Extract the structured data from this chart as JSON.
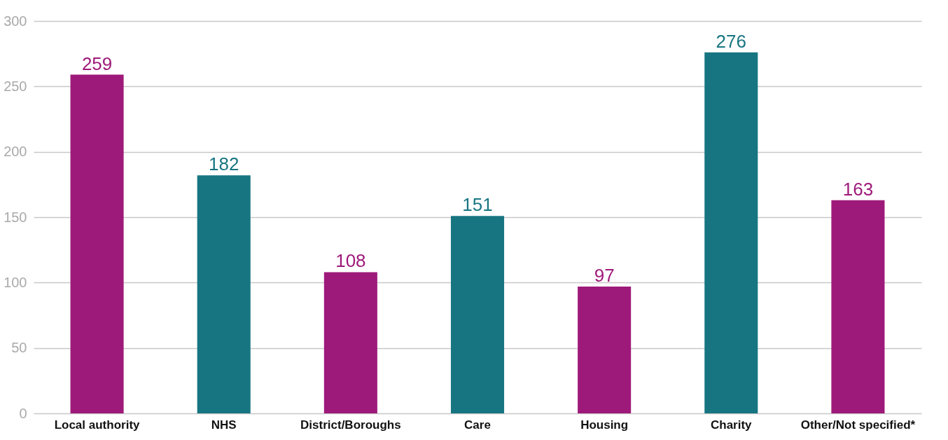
{
  "chart_data": {
    "type": "bar",
    "categories": [
      "Local authority",
      "NHS",
      "District/Boroughs",
      "Care",
      "Housing",
      "Charity",
      "Other/Not specified*"
    ],
    "values": [
      259,
      182,
      108,
      151,
      97,
      276,
      163
    ],
    "colors": [
      "#9e1a7a",
      "#177581",
      "#9e1a7a",
      "#177581",
      "#9e1a7a",
      "#177581",
      "#9e1a7a"
    ],
    "ylim": [
      0,
      300
    ],
    "yticks": [
      0,
      50,
      100,
      150,
      200,
      250,
      300
    ],
    "grid": "y",
    "data_labels": true
  }
}
